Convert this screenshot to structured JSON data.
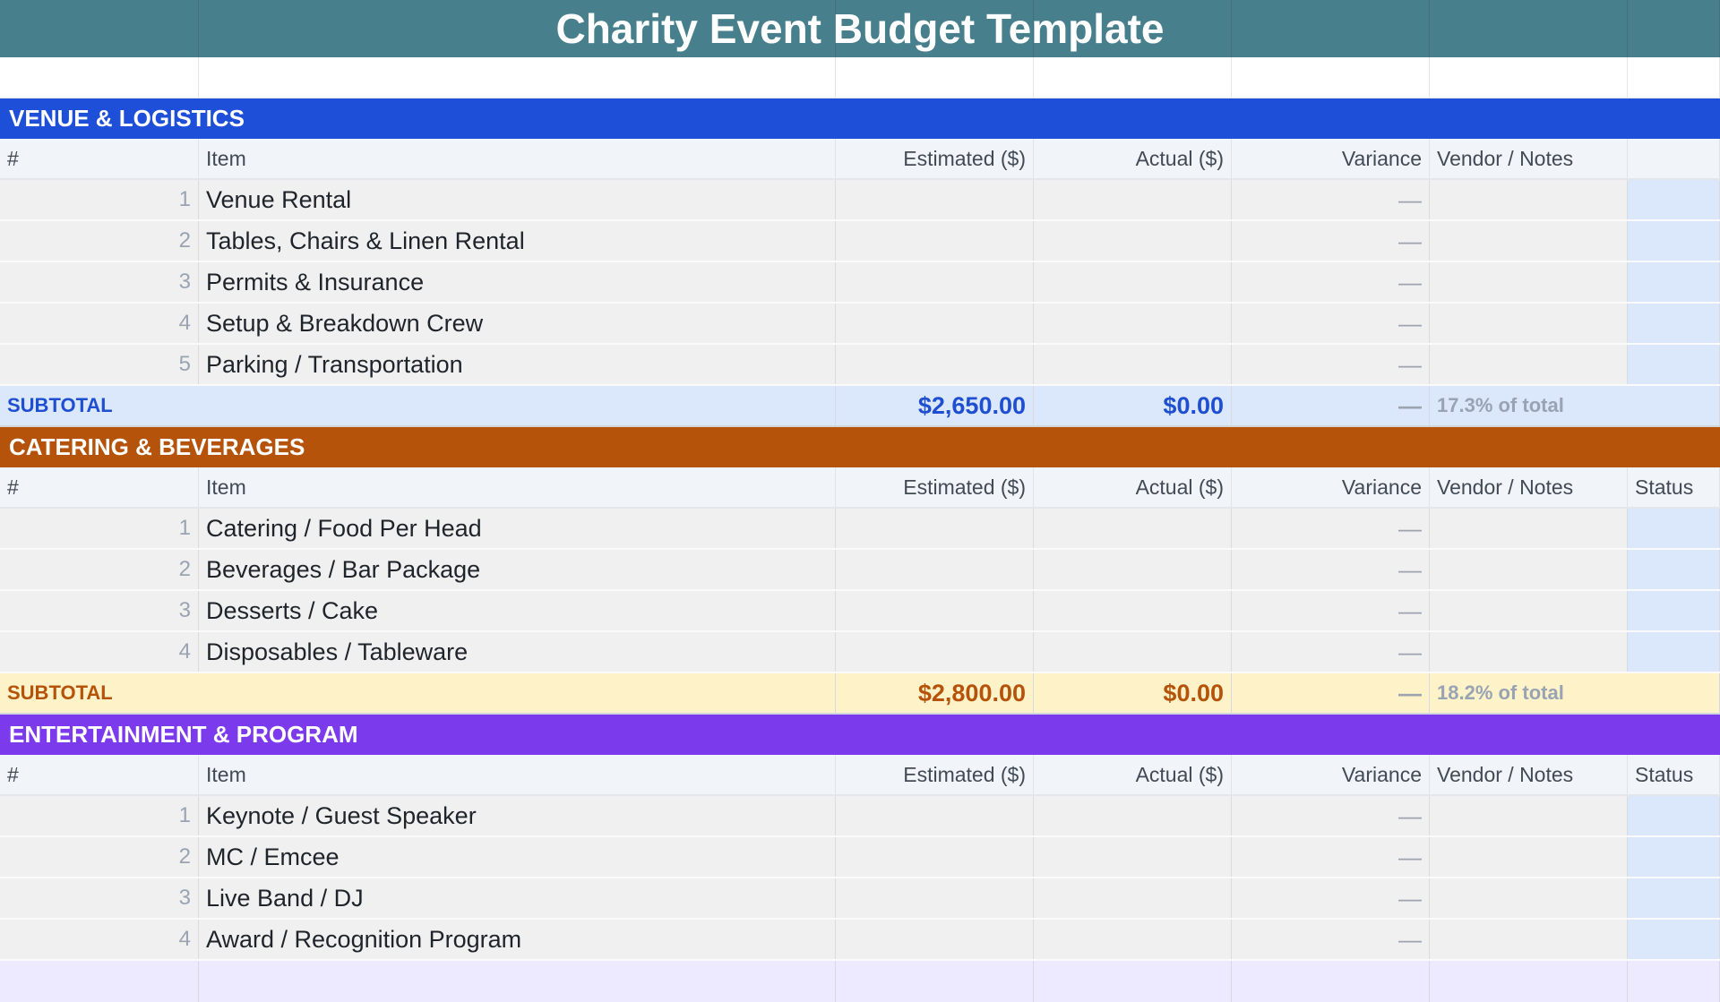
{
  "title": "Charity Event Budget Template",
  "columns": {
    "num": "#",
    "item": "Item",
    "estimated": "Estimated ($)",
    "actual": "Actual ($)",
    "variance": "Variance",
    "notes": "Vendor / Notes",
    "status": "Status"
  },
  "empty_dash": "—",
  "sections": [
    {
      "name": "VENUE & LOGISTICS",
      "header_color": "#1e4fd8",
      "subtotal_bg": "#dbe8fb",
      "subtotal_color": "#1f4fd0",
      "show_status_header": false,
      "items": [
        {
          "num": "1",
          "item": "Venue Rental"
        },
        {
          "num": "2",
          "item": "Tables, Chairs & Linen Rental"
        },
        {
          "num": "3",
          "item": "Permits & Insurance"
        },
        {
          "num": "4",
          "item": "Setup & Breakdown Crew"
        },
        {
          "num": "5",
          "item": "Parking / Transportation"
        }
      ],
      "subtotal": {
        "label": "SUBTOTAL",
        "estimated": "$2,650.00",
        "actual": "$0.00",
        "variance": "—",
        "pct": "17.3% of total"
      }
    },
    {
      "name": "CATERING & BEVERAGES",
      "header_color": "#b45309",
      "subtotal_bg": "#fef2c8",
      "subtotal_color": "#b45309",
      "show_status_header": true,
      "items": [
        {
          "num": "1",
          "item": "Catering / Food Per Head"
        },
        {
          "num": "2",
          "item": "Beverages / Bar Package"
        },
        {
          "num": "3",
          "item": "Desserts / Cake"
        },
        {
          "num": "4",
          "item": "Disposables / Tableware"
        }
      ],
      "subtotal": {
        "label": "SUBTOTAL",
        "estimated": "$2,800.00",
        "actual": "$0.00",
        "variance": "—",
        "pct": "18.2% of total"
      }
    },
    {
      "name": "ENTERTAINMENT & PROGRAM",
      "header_color": "#7c3aed",
      "subtotal_bg": "#ede9fe",
      "subtotal_color": "#7c3aed",
      "show_status_header": true,
      "items": [
        {
          "num": "1",
          "item": "Keynote / Guest Speaker"
        },
        {
          "num": "2",
          "item": "MC / Emcee"
        },
        {
          "num": "3",
          "item": "Live Band / DJ"
        },
        {
          "num": "4",
          "item": "Award / Recognition Program"
        }
      ]
    }
  ]
}
